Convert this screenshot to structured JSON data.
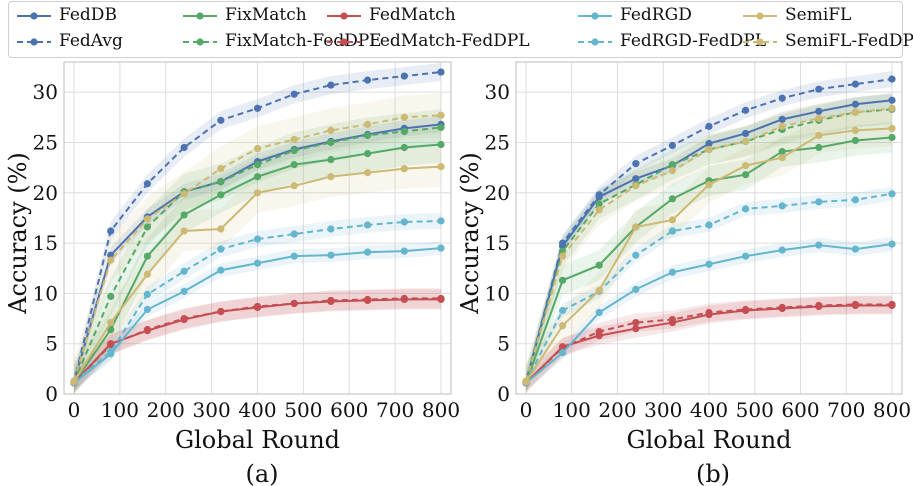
{
  "colors": {
    "FedDB": "#4c72b0",
    "FedAvg": "#4c72b0",
    "FixMatch": "#55a868",
    "FixMatch-FedDPL": "#55a868",
    "FedMatch": "#c44e52",
    "FedMatch-FedDPL": "#c44e52",
    "FedRGD": "#64b5cd",
    "FedRGD-FedDPL": "#64b5cd",
    "SemiFL": "#ccb974",
    "SemiFL-FedDPL": "#ccb974"
  },
  "legend": [
    {
      "name": "FedDB",
      "style": "solid"
    },
    {
      "name": "FixMatch",
      "style": "solid"
    },
    {
      "name": "FedMatch",
      "style": "solid"
    },
    {
      "name": "FedRGD",
      "style": "solid"
    },
    {
      "name": "SemiFL",
      "style": "solid"
    },
    {
      "name": "FedAvg",
      "style": "dashed"
    },
    {
      "name": "FixMatch-FedDPL",
      "style": "dashed"
    },
    {
      "name": "FedMatch-FedDPL",
      "style": "dashed"
    },
    {
      "name": "FedRGD-FedDPL",
      "style": "dashed"
    },
    {
      "name": "SemiFL-FedDPL",
      "style": "dashed"
    }
  ],
  "chart_data": [
    {
      "type": "line",
      "subtitle": "(a)",
      "xlabel": "Global Round",
      "ylabel": "Accuracy (%)",
      "xlim": [
        0,
        800
      ],
      "ylim": [
        0,
        33
      ],
      "xticks": [
        0,
        100,
        200,
        300,
        400,
        500,
        600,
        700,
        800
      ],
      "yticks": [
        0,
        5,
        10,
        15,
        20,
        25,
        30
      ],
      "grid": true,
      "x": [
        0,
        80,
        160,
        240,
        320,
        400,
        480,
        560,
        640,
        720,
        800
      ],
      "series": [
        {
          "name": "FedDB",
          "style": "solid",
          "values": [
            1.2,
            13.8,
            17.6,
            20.1,
            21.1,
            23.1,
            24.3,
            25.1,
            25.8,
            26.4,
            26.8
          ],
          "band": 0.8
        },
        {
          "name": "FedAvg",
          "style": "dashed",
          "values": [
            1.2,
            16.2,
            20.9,
            24.5,
            27.2,
            28.4,
            29.8,
            30.7,
            31.2,
            31.6,
            32.0
          ],
          "band": 0.9
        },
        {
          "name": "FixMatch",
          "style": "solid",
          "values": [
            1.1,
            6.4,
            13.7,
            17.8,
            19.8,
            21.6,
            22.8,
            23.3,
            23.9,
            24.5,
            24.8
          ],
          "band": 1.8
        },
        {
          "name": "FixMatch-FedDPL",
          "style": "dashed",
          "values": [
            1.2,
            9.7,
            16.6,
            20.1,
            21.1,
            22.8,
            24.2,
            25.0,
            25.7,
            26.1,
            26.5
          ],
          "band": 1.8
        },
        {
          "name": "FedMatch",
          "style": "solid",
          "values": [
            1.1,
            5.0,
            6.3,
            7.4,
            8.2,
            8.6,
            9.0,
            9.2,
            9.3,
            9.4,
            9.4
          ],
          "band": 1.0
        },
        {
          "name": "FedMatch-FedDPL",
          "style": "dashed",
          "values": [
            1.1,
            4.9,
            6.4,
            7.5,
            8.2,
            8.7,
            9.0,
            9.3,
            9.4,
            9.5,
            9.5
          ],
          "band": 1.0
        },
        {
          "name": "FedRGD",
          "style": "solid",
          "values": [
            1.1,
            4.0,
            8.4,
            10.2,
            12.3,
            13.0,
            13.7,
            13.8,
            14.1,
            14.2,
            14.5
          ],
          "band": 0.7
        },
        {
          "name": "FedRGD-FedDPL",
          "style": "dashed",
          "values": [
            1.2,
            4.2,
            9.9,
            12.2,
            14.4,
            15.4,
            15.9,
            16.4,
            16.8,
            17.1,
            17.2
          ],
          "band": 0.8
        },
        {
          "name": "SemiFL",
          "style": "solid",
          "values": [
            1.2,
            7.1,
            11.9,
            16.2,
            16.4,
            20.0,
            20.7,
            21.6,
            22.0,
            22.4,
            22.6
          ],
          "band": 2.0
        },
        {
          "name": "SemiFL-FedDPL",
          "style": "dashed",
          "values": [
            1.3,
            13.3,
            17.4,
            19.9,
            22.4,
            24.4,
            25.3,
            26.2,
            26.8,
            27.5,
            27.7
          ],
          "band": 2.2
        }
      ]
    },
    {
      "type": "line",
      "subtitle": "(b)",
      "xlabel": "Global Round",
      "ylabel": "Accuracy (%)",
      "xlim": [
        0,
        800
      ],
      "ylim": [
        0,
        33
      ],
      "xticks": [
        0,
        100,
        200,
        300,
        400,
        500,
        600,
        700,
        800
      ],
      "yticks": [
        0,
        5,
        10,
        15,
        20,
        25,
        30
      ],
      "grid": true,
      "x": [
        0,
        80,
        160,
        240,
        320,
        400,
        480,
        560,
        640,
        720,
        800
      ],
      "series": [
        {
          "name": "FedDB",
          "style": "solid",
          "values": [
            1.2,
            14.7,
            19.6,
            21.4,
            22.7,
            24.9,
            25.9,
            27.3,
            28.1,
            28.8,
            29.2
          ],
          "band": 0.7
        },
        {
          "name": "FedAvg",
          "style": "dashed",
          "values": [
            1.2,
            15.0,
            19.8,
            22.9,
            24.7,
            26.6,
            28.2,
            29.4,
            30.3,
            30.8,
            31.3
          ],
          "band": 0.8
        },
        {
          "name": "FixMatch",
          "style": "solid",
          "values": [
            1.1,
            11.3,
            12.8,
            16.6,
            19.4,
            21.2,
            21.8,
            24.1,
            24.5,
            25.2,
            25.5
          ],
          "band": 1.5
        },
        {
          "name": "FixMatch-FedDPL",
          "style": "dashed",
          "values": [
            1.2,
            14.2,
            18.9,
            20.8,
            22.8,
            24.3,
            25.1,
            26.3,
            27.2,
            28.0,
            28.3
          ],
          "band": 1.5
        },
        {
          "name": "FedMatch",
          "style": "solid",
          "values": [
            1.1,
            4.7,
            5.8,
            6.5,
            7.1,
            7.9,
            8.3,
            8.5,
            8.7,
            8.8,
            8.8
          ],
          "band": 0.9
        },
        {
          "name": "FedMatch-FedDPL",
          "style": "dashed",
          "values": [
            1.1,
            4.6,
            6.2,
            7.1,
            7.4,
            8.1,
            8.4,
            8.6,
            8.8,
            8.9,
            8.9
          ],
          "band": 0.9
        },
        {
          "name": "FedRGD",
          "style": "solid",
          "values": [
            1.1,
            4.1,
            8.1,
            10.4,
            12.1,
            12.9,
            13.7,
            14.3,
            14.8,
            14.4,
            14.9
          ],
          "band": 0.7
        },
        {
          "name": "FedRGD-FedDPL",
          "style": "dashed",
          "values": [
            1.2,
            8.3,
            10.2,
            13.8,
            16.2,
            16.8,
            18.4,
            18.7,
            19.1,
            19.3,
            19.9
          ],
          "band": 0.7
        },
        {
          "name": "SemiFL",
          "style": "solid",
          "values": [
            1.2,
            6.8,
            10.3,
            16.6,
            17.3,
            20.8,
            22.7,
            23.5,
            25.7,
            26.2,
            26.4
          ],
          "band": 1.8
        },
        {
          "name": "SemiFL-FedDPL",
          "style": "dashed",
          "values": [
            1.3,
            13.7,
            18.3,
            20.7,
            22.2,
            24.3,
            25.1,
            26.6,
            27.4,
            28.0,
            28.4
          ],
          "band": 1.5
        }
      ]
    }
  ]
}
